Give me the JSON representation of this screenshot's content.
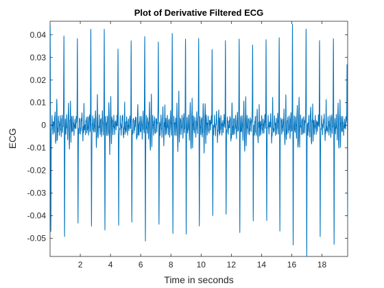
{
  "chart_data": {
    "type": "line",
    "title": "Plot of Derivative Filtered ECG",
    "xlabel": "Time in seconds",
    "ylabel": "ECG",
    "xlim": [
      0,
      19.7
    ],
    "ylim": [
      -0.058,
      0.046
    ],
    "xticks": [
      2,
      4,
      6,
      8,
      10,
      12,
      14,
      16,
      18
    ],
    "xtick_labels": [
      "2",
      "4",
      "6",
      "8",
      "10",
      "12",
      "14",
      "16",
      "18"
    ],
    "yticks": [
      -0.05,
      -0.04,
      -0.03,
      -0.02,
      -0.01,
      0,
      0.01,
      0.02,
      0.03,
      0.04
    ],
    "ytick_labels": [
      "-0.05",
      "-0.04",
      "-0.03",
      "-0.02",
      "-0.01",
      "0",
      "0.01",
      "0.02",
      "0.03",
      "0.04"
    ],
    "grid": false,
    "line_color": "#0072BD",
    "series": [
      {
        "beat_times": [
          0.03,
          0.94,
          1.83,
          2.72,
          3.61,
          4.52,
          5.39,
          6.29,
          7.19,
          8.11,
          8.99,
          9.86,
          10.75,
          11.63,
          12.54,
          13.43,
          14.32,
          15.19,
          16.07,
          16.97,
          17.86,
          18.78,
          19.68
        ],
        "beat_peaks": [
          0.042,
          0.041,
          0.041,
          0.04,
          0.039,
          0.038,
          0.038,
          0.038,
          0.039,
          0.039,
          0.038,
          0.037,
          0.036,
          0.037,
          0.038,
          0.039,
          0.038,
          0.039,
          0.042,
          0.046,
          0.04,
          0.039,
          0.029
        ],
        "beat_troughs": [
          -0.048,
          -0.048,
          -0.047,
          -0.046,
          -0.045,
          -0.046,
          -0.046,
          -0.047,
          -0.046,
          -0.045,
          -0.044,
          -0.044,
          -0.043,
          -0.043,
          -0.044,
          -0.044,
          -0.045,
          -0.046,
          -0.05,
          -0.058,
          -0.052,
          -0.049,
          -0.046
        ],
        "t_wave_amplitude": 0.009,
        "baseline_noise": 0.003
      }
    ]
  }
}
